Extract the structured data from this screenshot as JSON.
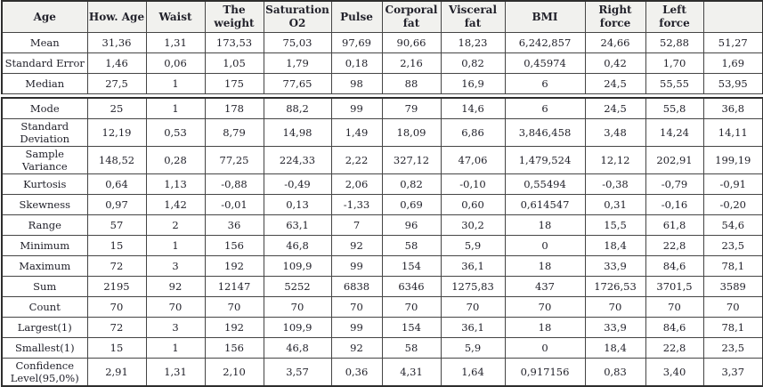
{
  "table": {
    "title": "Descriptive statistics table",
    "header": [
      "Age",
      "How. Age",
      "Waist",
      "The\nweight",
      "Saturation\nO2",
      "Pulse",
      "Corporal\nfat",
      "Visceral\nfat",
      "BMI",
      "Right\nforce",
      "Left force",
      ""
    ],
    "sections": [
      {
        "rows": [
          {
            "label": "Mean",
            "values": [
              "31,36",
              "1,31",
              "173,53",
              "75,03",
              "97,69",
              "90,66",
              "18,23",
              "6,242,857",
              "24,66",
              "52,88",
              "51,27"
            ]
          },
          {
            "label": "Standard Error",
            "values": [
              "1,46",
              "0,06",
              "1,05",
              "1,79",
              "0,18",
              "2,16",
              "0,82",
              "0,45974",
              "0,42",
              "1,70",
              "1,69"
            ]
          },
          {
            "label": "Median",
            "values": [
              "27,5",
              "1",
              "175",
              "77,65",
              "98",
              "88",
              "16,9",
              "6",
              "24,5",
              "55,55",
              "53,95"
            ]
          }
        ]
      },
      {
        "rows": [
          {
            "label": "Mode",
            "values": [
              "25",
              "1",
              "178",
              "88,2",
              "99",
              "79",
              "14,6",
              "6",
              "24,5",
              "55,8",
              "36,8"
            ]
          },
          {
            "label": "Standard\nDeviation",
            "values": [
              "12,19",
              "0,53",
              "8,79",
              "14,98",
              "1,49",
              "18,09",
              "6,86",
              "3,846,458",
              "3,48",
              "14,24",
              "14,11"
            ]
          },
          {
            "label": "Sample\nVariance",
            "values": [
              "148,52",
              "0,28",
              "77,25",
              "224,33",
              "2,22",
              "327,12",
              "47,06",
              "1,479,524",
              "12,12",
              "202,91",
              "199,19"
            ]
          },
          {
            "label": "Kurtosis",
            "values": [
              "0,64",
              "1,13",
              "-0,88",
              "-0,49",
              "2,06",
              "0,82",
              "-0,10",
              "0,55494",
              "-0,38",
              "-0,79",
              "-0,91"
            ]
          },
          {
            "label": "Skewness",
            "values": [
              "0,97",
              "1,42",
              "-0,01",
              "0,13",
              "-1,33",
              "0,69",
              "0,60",
              "0,614547",
              "0,31",
              "-0,16",
              "-0,20"
            ]
          },
          {
            "label": "Range",
            "values": [
              "57",
              "2",
              "36",
              "63,1",
              "7",
              "96",
              "30,2",
              "18",
              "15,5",
              "61,8",
              "54,6"
            ]
          },
          {
            "label": "Minimum",
            "values": [
              "15",
              "1",
              "156",
              "46,8",
              "92",
              "58",
              "5,9",
              "0",
              "18,4",
              "22,8",
              "23,5"
            ]
          },
          {
            "label": "Maximum",
            "values": [
              "72",
              "3",
              "192",
              "109,9",
              "99",
              "154",
              "36,1",
              "18",
              "33,9",
              "84,6",
              "78,1"
            ]
          },
          {
            "label": "Sum",
            "values": [
              "2195",
              "92",
              "12147",
              "5252",
              "6838",
              "6346",
              "1275,83",
              "437",
              "1726,53",
              "3701,5",
              "3589"
            ]
          },
          {
            "label": "Count",
            "values": [
              "70",
              "70",
              "70",
              "70",
              "70",
              "70",
              "70",
              "70",
              "70",
              "70",
              "70"
            ]
          },
          {
            "label": "Largest(1)",
            "values": [
              "72",
              "3",
              "192",
              "109,9",
              "99",
              "154",
              "36,1",
              "18",
              "33,9",
              "84,6",
              "78,1"
            ]
          },
          {
            "label": "Smallest(1)",
            "values": [
              "15",
              "1",
              "156",
              "46,8",
              "92",
              "58",
              "5,9",
              "0",
              "18,4",
              "22,8",
              "23,5"
            ]
          },
          {
            "label": "Confidence\nLevel(95,0%)",
            "values": [
              "2,91",
              "1,31",
              "2,10",
              "3,57",
              "0,36",
              "4,31",
              "1,64",
              "0,917156",
              "0,83",
              "3,40",
              "3,37"
            ]
          }
        ]
      }
    ]
  }
}
